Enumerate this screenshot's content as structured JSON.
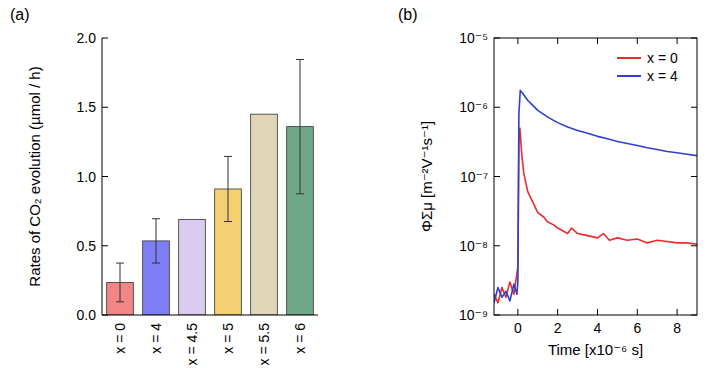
{
  "chart_data": [
    {
      "type": "bar",
      "title": "(a)",
      "ylabel": "Rates of CO₂ evolution (µmol / h)",
      "categories": [
        "x = 0",
        "x = 4",
        "x = 4.5",
        "x = 5",
        "x = 5.5",
        "x = 6"
      ],
      "values": [
        0.235,
        0.535,
        0.69,
        0.91,
        1.45,
        1.36
      ],
      "errors": [
        0.14,
        0.16,
        null,
        0.235,
        null,
        0.485
      ],
      "colors": [
        "#f28585",
        "#7e7ef7",
        "#dccbf0",
        "#f6cf73",
        "#e2d6ba",
        "#6fa98a"
      ],
      "ylim": [
        0,
        2
      ],
      "yticks": [
        {
          "value": 0,
          "label": "0.0"
        },
        {
          "value": 0.5,
          "label": "0.5"
        },
        {
          "value": 1,
          "label": "1.0"
        },
        {
          "value": 1.5,
          "label": "1.5"
        },
        {
          "value": 2,
          "label": "2.0"
        }
      ]
    },
    {
      "type": "line",
      "title": "(b)",
      "xlabel": "Time [x10⁻⁶ s]",
      "ylabel": "ΦΣμ [m⁻²V⁻¹s⁻¹]",
      "log": "y",
      "legend": "upper right",
      "xlim": [
        -1.2,
        9
      ],
      "xticks": [
        0,
        2,
        4,
        6,
        8
      ],
      "ylim": [
        1e-09,
        1e-05
      ],
      "yticks": [
        {
          "value": 1e-09,
          "label": "10⁻⁹"
        },
        {
          "value": 1e-08,
          "label": "10⁻⁸"
        },
        {
          "value": 1e-07,
          "label": "10⁻⁷"
        },
        {
          "value": 1e-06,
          "label": "10⁻⁶"
        },
        {
          "value": 1e-05,
          "label": "10⁻⁵"
        }
      ],
      "series": [
        {
          "name": "x = 0",
          "color": "#ee2b2b",
          "x": [
            -1.2,
            -1.0,
            -0.8,
            -0.6,
            -0.4,
            -0.2,
            -0.05,
            0,
            0.05,
            0.1,
            0.2,
            0.3,
            0.5,
            0.8,
            1.0,
            1.3,
            1.5,
            1.8,
            2.0,
            2.5,
            2.7,
            3.0,
            3.5,
            4.0,
            4.3,
            4.6,
            5.0,
            5.5,
            6.0,
            6.5,
            7.0,
            7.5,
            8.0,
            8.5,
            9.0
          ],
          "values": [
            2e-09,
            1.5e-09,
            2.5e-09,
            1.8e-09,
            3e-09,
            2e-09,
            4e-09,
            5e-09,
            3e-07,
            5e-07,
            2e-07,
            1.1e-07,
            6e-08,
            4e-08,
            3e-08,
            2.6e-08,
            2.2e-08,
            2e-08,
            1.8e-08,
            1.5e-08,
            1.8e-08,
            1.5e-08,
            1.4e-08,
            1.3e-08,
            1.5e-08,
            1.2e-08,
            1.3e-08,
            1.2e-08,
            1.25e-08,
            1.1e-08,
            1.2e-08,
            1.15e-08,
            1.1e-08,
            1.1e-08,
            1.05e-08
          ]
        },
        {
          "name": "x = 4",
          "color": "#2f3fd0",
          "x": [
            -1.2,
            -1.0,
            -0.8,
            -0.6,
            -0.4,
            -0.2,
            -0.05,
            0,
            0.05,
            0.12,
            0.2,
            0.3,
            0.5,
            0.7,
            1.0,
            1.5,
            2.0,
            2.5,
            3.0,
            3.5,
            4.0,
            4.5,
            5.0,
            5.5,
            6.0,
            6.5,
            7.0,
            7.5,
            8.0,
            8.5,
            9.0
          ],
          "values": [
            1.5e-09,
            2.5e-09,
            1.8e-09,
            2.2e-09,
            1.6e-09,
            2.8e-09,
            2e-09,
            3e-09,
            8e-07,
            1.75e-06,
            1.65e-06,
            1.5e-06,
            1.25e-06,
            1.1e-06,
            9e-07,
            7.2e-07,
            6e-07,
            5.2e-07,
            4.6e-07,
            4.2e-07,
            3.8e-07,
            3.5e-07,
            3.2e-07,
            3e-07,
            2.8e-07,
            2.6e-07,
            2.45e-07,
            2.3e-07,
            2.2e-07,
            2.1e-07,
            2e-07
          ]
        }
      ]
    }
  ]
}
